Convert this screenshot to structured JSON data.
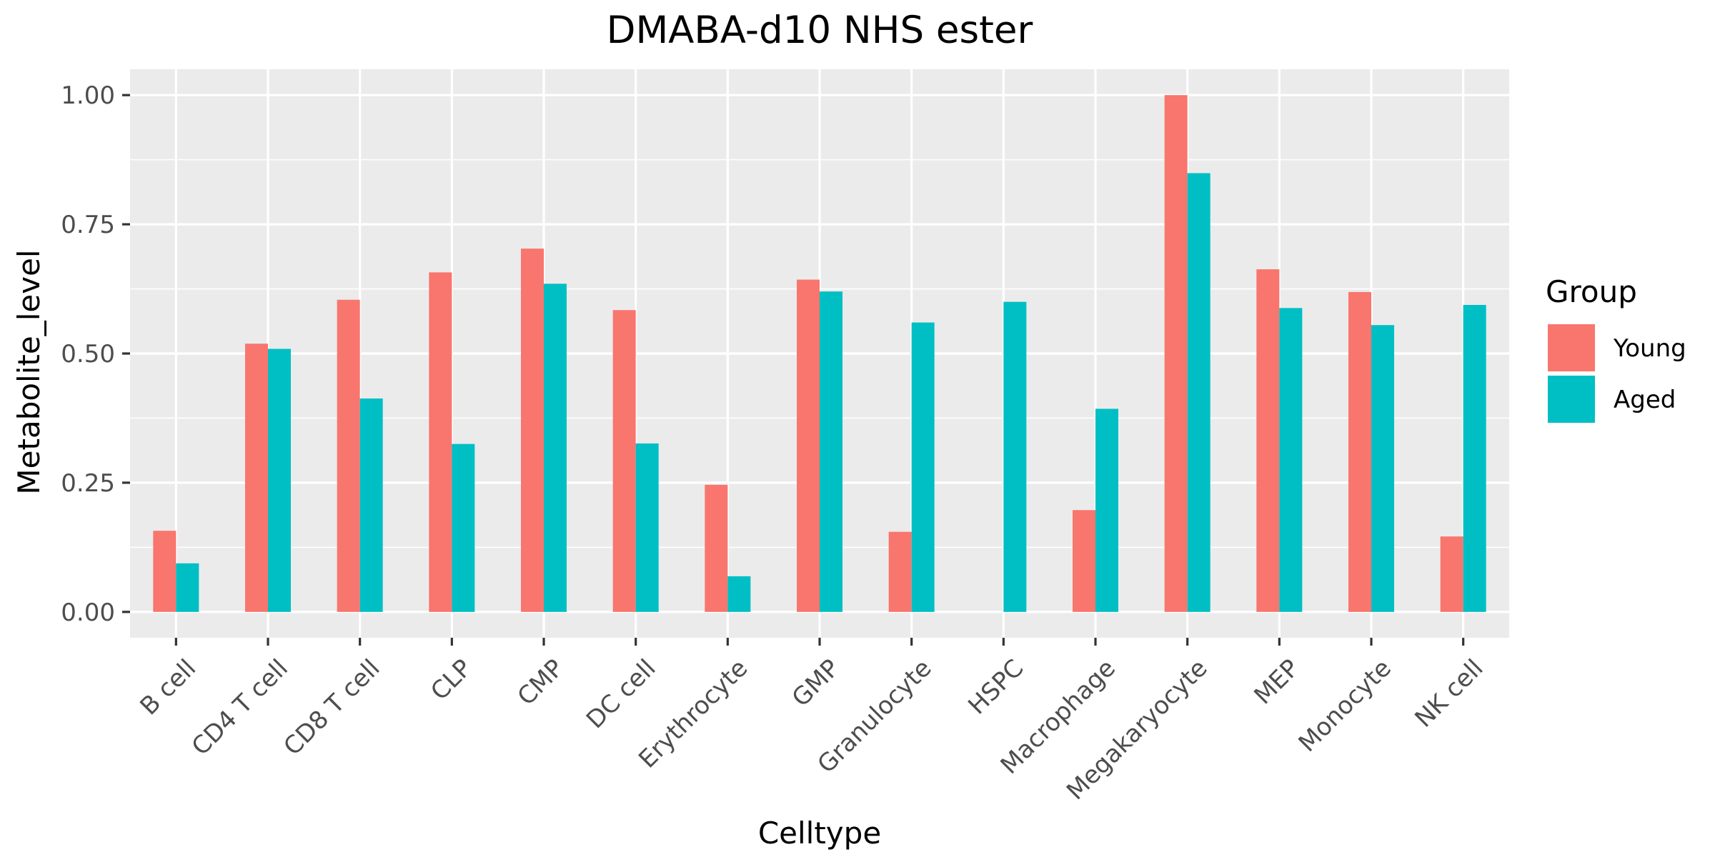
{
  "chart_data": {
    "type": "bar",
    "title": "DMABA-d10 NHS ester",
    "xlabel": "Celltype",
    "ylabel": "Metabolite_level",
    "categories": [
      "B cell",
      "CD4 T cell",
      "CD8 T cell",
      "CLP",
      "CMP",
      "DC cell",
      "Erythrocyte",
      "GMP",
      "Granulocyte",
      "HSPC",
      "Macrophage",
      "Megakaryocyte",
      "MEP",
      "Monocyte",
      "NK cell"
    ],
    "series": [
      {
        "name": "Young",
        "color": "#F8766D",
        "values": [
          0.157,
          0.519,
          0.604,
          0.657,
          0.703,
          0.584,
          0.246,
          0.643,
          0.155,
          0.0,
          0.197,
          1.0,
          0.663,
          0.619,
          0.146
        ]
      },
      {
        "name": "Aged",
        "color": "#00BFC4",
        "values": [
          0.094,
          0.509,
          0.413,
          0.325,
          0.635,
          0.326,
          0.069,
          0.62,
          0.56,
          0.6,
          0.393,
          0.849,
          0.588,
          0.555,
          0.594
        ]
      }
    ],
    "ylim": [
      -0.05,
      1.05
    ],
    "yticks": [
      0.0,
      0.25,
      0.5,
      0.75,
      1.0
    ],
    "ytick_labels": [
      "0.00",
      "0.25",
      "0.50",
      "0.75",
      "1.00"
    ],
    "grid": true,
    "legend": {
      "title": "Group",
      "position": "right"
    },
    "panel_background": "#EBEBEB",
    "grid_color": "#FFFFFF"
  }
}
